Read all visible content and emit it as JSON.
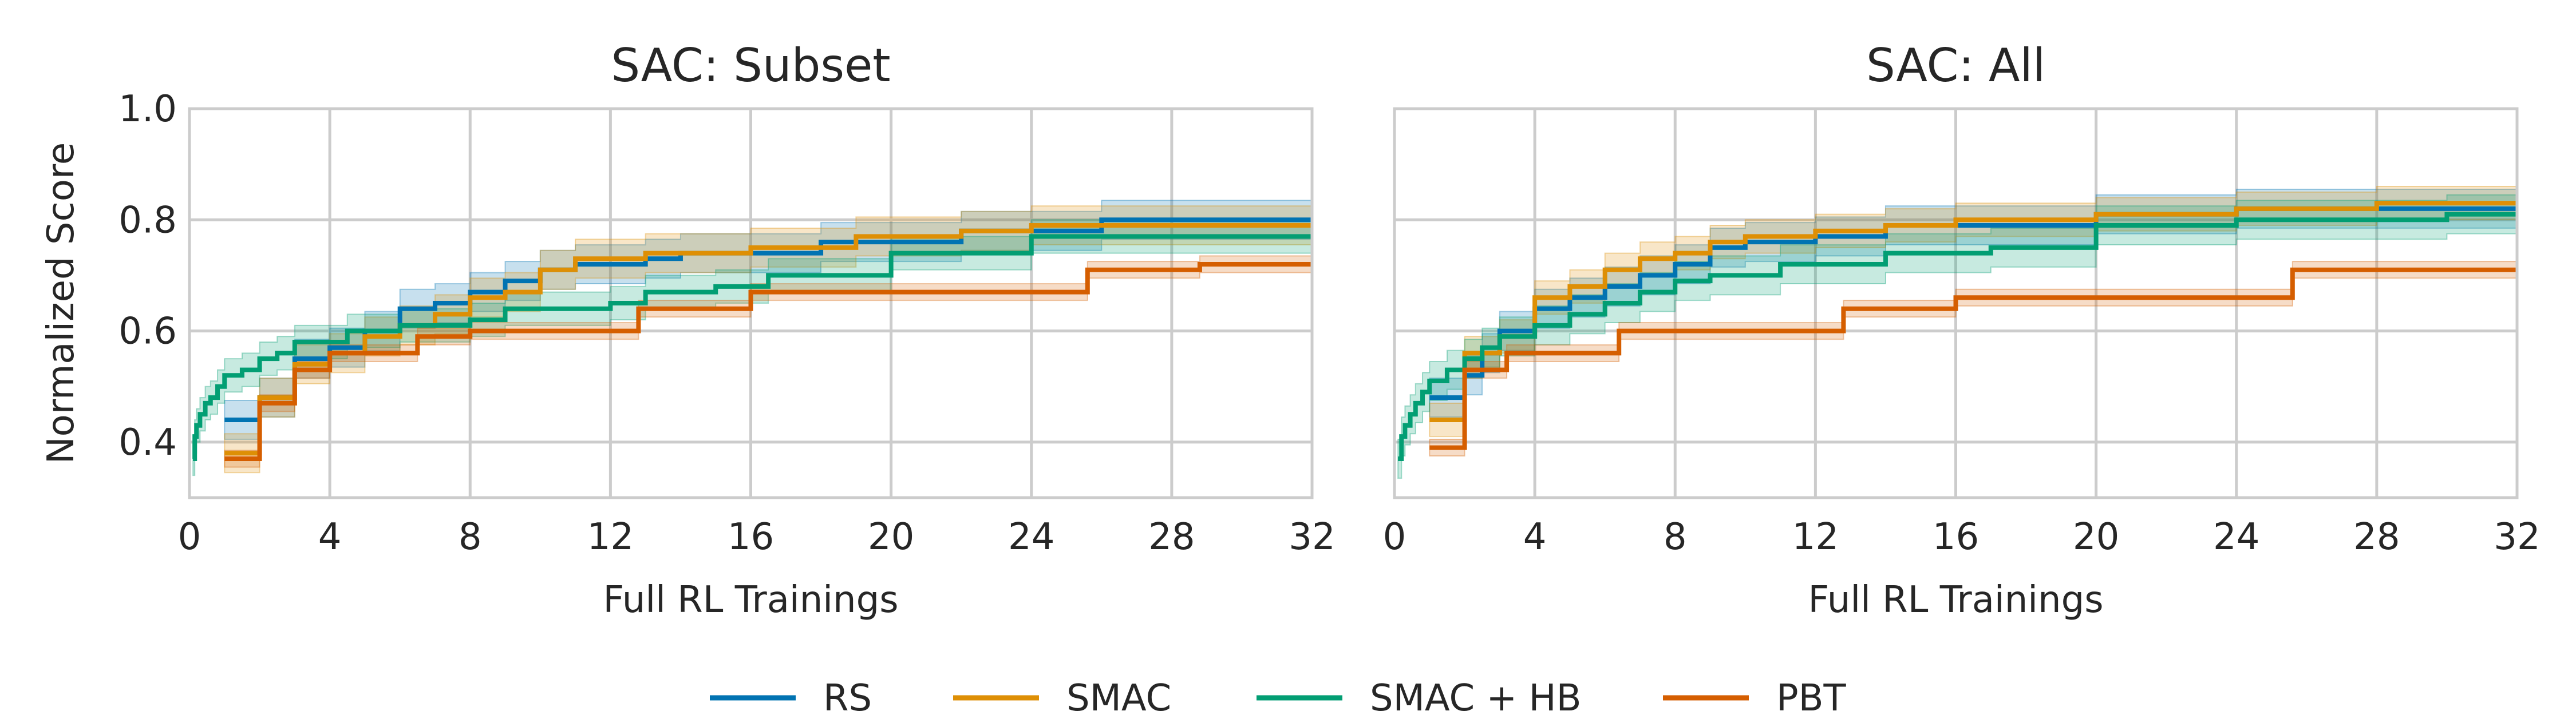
{
  "chart_data": [
    {
      "type": "line",
      "title": "SAC: Subset",
      "xlabel": "Full RL Trainings",
      "ylabel": "Normalized Score",
      "xlim": [
        0,
        32
      ],
      "ylim": [
        0.3,
        1.0
      ],
      "xticks": [
        "0",
        "4",
        "8",
        "12",
        "16",
        "20",
        "24",
        "28",
        "32"
      ],
      "yticks": [
        "0.4",
        "0.6",
        "0.8",
        "1.0"
      ],
      "grid": true,
      "series": [
        {
          "name": "RS",
          "color": "#0173b2",
          "band": 0.035,
          "points": [
            [
              1.0,
              0.44
            ],
            [
              2.0,
              0.44
            ],
            [
              2.0,
              0.48
            ],
            [
              3.0,
              0.48
            ],
            [
              3.0,
              0.55
            ],
            [
              4.0,
              0.55
            ],
            [
              4.0,
              0.57
            ],
            [
              5.0,
              0.57
            ],
            [
              5.0,
              0.6
            ],
            [
              6.0,
              0.6
            ],
            [
              6.0,
              0.64
            ],
            [
              7.0,
              0.64
            ],
            [
              7.0,
              0.65
            ],
            [
              8.0,
              0.65
            ],
            [
              8.0,
              0.67
            ],
            [
              9.0,
              0.67
            ],
            [
              9.0,
              0.69
            ],
            [
              10.0,
              0.69
            ],
            [
              10.0,
              0.71
            ],
            [
              11.0,
              0.71
            ],
            [
              11.0,
              0.72
            ],
            [
              13.0,
              0.72
            ],
            [
              13.0,
              0.73
            ],
            [
              14.0,
              0.73
            ],
            [
              14.0,
              0.74
            ],
            [
              18.0,
              0.74
            ],
            [
              18.0,
              0.76
            ],
            [
              22.0,
              0.76
            ],
            [
              22.0,
              0.78
            ],
            [
              26.0,
              0.78
            ],
            [
              26.0,
              0.8
            ],
            [
              32.0,
              0.8
            ]
          ]
        },
        {
          "name": "SMAC",
          "color": "#de8f05",
          "band": 0.035,
          "points": [
            [
              1.0,
              0.38
            ],
            [
              2.0,
              0.38
            ],
            [
              2.0,
              0.48
            ],
            [
              3.0,
              0.48
            ],
            [
              3.0,
              0.54
            ],
            [
              4.0,
              0.54
            ],
            [
              4.0,
              0.56
            ],
            [
              5.0,
              0.56
            ],
            [
              5.0,
              0.59
            ],
            [
              6.0,
              0.59
            ],
            [
              6.0,
              0.61
            ],
            [
              7.0,
              0.61
            ],
            [
              7.0,
              0.63
            ],
            [
              8.0,
              0.63
            ],
            [
              8.0,
              0.66
            ],
            [
              9.0,
              0.66
            ],
            [
              9.0,
              0.67
            ],
            [
              10.0,
              0.67
            ],
            [
              10.0,
              0.71
            ],
            [
              11.0,
              0.71
            ],
            [
              11.0,
              0.73
            ],
            [
              13.0,
              0.73
            ],
            [
              13.0,
              0.74
            ],
            [
              16.0,
              0.74
            ],
            [
              16.0,
              0.75
            ],
            [
              19.0,
              0.75
            ],
            [
              19.0,
              0.77
            ],
            [
              22.0,
              0.77
            ],
            [
              22.0,
              0.78
            ],
            [
              24.0,
              0.78
            ],
            [
              24.0,
              0.79
            ],
            [
              32.0,
              0.79
            ]
          ]
        },
        {
          "name": "SMAC + HB",
          "color": "#029e73",
          "band": 0.03,
          "points": [
            [
              0.1,
              0.37
            ],
            [
              0.15,
              0.37
            ],
            [
              0.15,
              0.41
            ],
            [
              0.2,
              0.41
            ],
            [
              0.2,
              0.43
            ],
            [
              0.3,
              0.43
            ],
            [
              0.3,
              0.45
            ],
            [
              0.45,
              0.45
            ],
            [
              0.45,
              0.47
            ],
            [
              0.6,
              0.47
            ],
            [
              0.6,
              0.48
            ],
            [
              0.8,
              0.48
            ],
            [
              0.8,
              0.5
            ],
            [
              1.0,
              0.5
            ],
            [
              1.0,
              0.52
            ],
            [
              1.5,
              0.52
            ],
            [
              1.5,
              0.53
            ],
            [
              2.0,
              0.53
            ],
            [
              2.0,
              0.55
            ],
            [
              2.5,
              0.55
            ],
            [
              2.5,
              0.56
            ],
            [
              3.0,
              0.56
            ],
            [
              3.0,
              0.58
            ],
            [
              4.5,
              0.58
            ],
            [
              4.5,
              0.6
            ],
            [
              6.0,
              0.6
            ],
            [
              6.0,
              0.61
            ],
            [
              8.0,
              0.61
            ],
            [
              8.0,
              0.62
            ],
            [
              9.0,
              0.62
            ],
            [
              9.0,
              0.64
            ],
            [
              12.0,
              0.64
            ],
            [
              12.0,
              0.65
            ],
            [
              13.0,
              0.65
            ],
            [
              13.0,
              0.67
            ],
            [
              15.0,
              0.67
            ],
            [
              15.0,
              0.68
            ],
            [
              16.5,
              0.68
            ],
            [
              16.5,
              0.7
            ],
            [
              20.0,
              0.7
            ],
            [
              20.0,
              0.74
            ],
            [
              24.0,
              0.74
            ],
            [
              24.0,
              0.77
            ],
            [
              32.0,
              0.77
            ]
          ]
        },
        {
          "name": "PBT",
          "color": "#d55e00",
          "band": 0.015,
          "points": [
            [
              1.0,
              0.37
            ],
            [
              2.0,
              0.37
            ],
            [
              2.0,
              0.47
            ],
            [
              3.0,
              0.47
            ],
            [
              3.0,
              0.53
            ],
            [
              4.0,
              0.53
            ],
            [
              4.0,
              0.56
            ],
            [
              6.5,
              0.56
            ],
            [
              6.5,
              0.59
            ],
            [
              8.0,
              0.59
            ],
            [
              8.0,
              0.6
            ],
            [
              12.8,
              0.6
            ],
            [
              12.8,
              0.64
            ],
            [
              16.0,
              0.64
            ],
            [
              16.0,
              0.67
            ],
            [
              25.6,
              0.67
            ],
            [
              25.6,
              0.71
            ],
            [
              28.8,
              0.71
            ],
            [
              28.8,
              0.72
            ],
            [
              32.0,
              0.72
            ]
          ]
        }
      ]
    },
    {
      "type": "line",
      "title": "SAC: All",
      "xlabel": "Full RL Trainings",
      "ylabel": "",
      "xlim": [
        0,
        32
      ],
      "ylim": [
        0.3,
        1.0
      ],
      "xticks": [
        "0",
        "4",
        "8",
        "12",
        "16",
        "20",
        "24",
        "28",
        "32"
      ],
      "yticks": [],
      "grid": true,
      "series": [
        {
          "name": "RS",
          "color": "#0173b2",
          "band": 0.035,
          "points": [
            [
              1.0,
              0.48
            ],
            [
              2.0,
              0.48
            ],
            [
              2.0,
              0.52
            ],
            [
              2.5,
              0.52
            ],
            [
              2.5,
              0.56
            ],
            [
              3.0,
              0.56
            ],
            [
              3.0,
              0.6
            ],
            [
              4.0,
              0.6
            ],
            [
              4.0,
              0.64
            ],
            [
              5.0,
              0.64
            ],
            [
              5.0,
              0.66
            ],
            [
              6.0,
              0.66
            ],
            [
              6.0,
              0.68
            ],
            [
              7.0,
              0.68
            ],
            [
              7.0,
              0.7
            ],
            [
              8.0,
              0.7
            ],
            [
              8.0,
              0.72
            ],
            [
              9.0,
              0.72
            ],
            [
              9.0,
              0.75
            ],
            [
              10.0,
              0.75
            ],
            [
              10.0,
              0.76
            ],
            [
              12.0,
              0.76
            ],
            [
              12.0,
              0.77
            ],
            [
              14.0,
              0.77
            ],
            [
              14.0,
              0.79
            ],
            [
              20.0,
              0.79
            ],
            [
              20.0,
              0.81
            ],
            [
              24.0,
              0.81
            ],
            [
              24.0,
              0.82
            ],
            [
              30.0,
              0.82
            ],
            [
              30.0,
              0.82
            ],
            [
              32.0,
              0.82
            ]
          ]
        },
        {
          "name": "SMAC",
          "color": "#de8f05",
          "band": 0.03,
          "points": [
            [
              1.0,
              0.44
            ],
            [
              2.0,
              0.44
            ],
            [
              2.0,
              0.56
            ],
            [
              3.0,
              0.56
            ],
            [
              3.0,
              0.59
            ],
            [
              4.0,
              0.59
            ],
            [
              4.0,
              0.66
            ],
            [
              5.0,
              0.66
            ],
            [
              5.0,
              0.68
            ],
            [
              6.0,
              0.68
            ],
            [
              6.0,
              0.71
            ],
            [
              7.0,
              0.71
            ],
            [
              7.0,
              0.73
            ],
            [
              8.0,
              0.73
            ],
            [
              8.0,
              0.74
            ],
            [
              9.0,
              0.74
            ],
            [
              9.0,
              0.76
            ],
            [
              10.0,
              0.76
            ],
            [
              10.0,
              0.77
            ],
            [
              12.0,
              0.77
            ],
            [
              12.0,
              0.78
            ],
            [
              14.0,
              0.78
            ],
            [
              14.0,
              0.79
            ],
            [
              16.0,
              0.79
            ],
            [
              16.0,
              0.8
            ],
            [
              20.0,
              0.8
            ],
            [
              20.0,
              0.81
            ],
            [
              24.0,
              0.81
            ],
            [
              24.0,
              0.82
            ],
            [
              28.0,
              0.82
            ],
            [
              28.0,
              0.83
            ],
            [
              32.0,
              0.83
            ]
          ]
        },
        {
          "name": "SMAC + HB",
          "color": "#029e73",
          "band": 0.035,
          "points": [
            [
              0.1,
              0.37
            ],
            [
              0.2,
              0.37
            ],
            [
              0.2,
              0.41
            ],
            [
              0.3,
              0.41
            ],
            [
              0.3,
              0.43
            ],
            [
              0.45,
              0.43
            ],
            [
              0.45,
              0.45
            ],
            [
              0.6,
              0.45
            ],
            [
              0.6,
              0.47
            ],
            [
              0.8,
              0.47
            ],
            [
              0.8,
              0.49
            ],
            [
              1.0,
              0.49
            ],
            [
              1.0,
              0.51
            ],
            [
              1.5,
              0.51
            ],
            [
              1.5,
              0.53
            ],
            [
              2.0,
              0.53
            ],
            [
              2.0,
              0.55
            ],
            [
              2.5,
              0.55
            ],
            [
              2.5,
              0.57
            ],
            [
              3.0,
              0.57
            ],
            [
              3.0,
              0.59
            ],
            [
              4.0,
              0.59
            ],
            [
              4.0,
              0.61
            ],
            [
              5.0,
              0.61
            ],
            [
              5.0,
              0.63
            ],
            [
              6.0,
              0.63
            ],
            [
              6.0,
              0.65
            ],
            [
              7.0,
              0.65
            ],
            [
              7.0,
              0.67
            ],
            [
              8.0,
              0.67
            ],
            [
              8.0,
              0.69
            ],
            [
              9.0,
              0.69
            ],
            [
              9.0,
              0.7
            ],
            [
              11.0,
              0.7
            ],
            [
              11.0,
              0.72
            ],
            [
              14.0,
              0.72
            ],
            [
              14.0,
              0.74
            ],
            [
              17.0,
              0.74
            ],
            [
              17.0,
              0.75
            ],
            [
              20.0,
              0.75
            ],
            [
              20.0,
              0.79
            ],
            [
              24.0,
              0.79
            ],
            [
              24.0,
              0.8
            ],
            [
              30.0,
              0.8
            ],
            [
              30.0,
              0.81
            ],
            [
              32.0,
              0.81
            ]
          ]
        },
        {
          "name": "PBT",
          "color": "#d55e00",
          "band": 0.015,
          "points": [
            [
              1.0,
              0.39
            ],
            [
              2.0,
              0.39
            ],
            [
              2.0,
              0.53
            ],
            [
              3.2,
              0.53
            ],
            [
              3.2,
              0.56
            ],
            [
              6.4,
              0.56
            ],
            [
              6.4,
              0.6
            ],
            [
              12.8,
              0.6
            ],
            [
              12.8,
              0.64
            ],
            [
              16.0,
              0.64
            ],
            [
              16.0,
              0.66
            ],
            [
              25.6,
              0.66
            ],
            [
              25.6,
              0.71
            ],
            [
              32.0,
              0.71
            ]
          ]
        }
      ]
    }
  ],
  "legend": {
    "placement": "bottom-center",
    "items": [
      {
        "label": "RS",
        "color": "#0173b2"
      },
      {
        "label": "SMAC",
        "color": "#de8f05"
      },
      {
        "label": "SMAC + HB",
        "color": "#029e73"
      },
      {
        "label": "PBT",
        "color": "#d55e00"
      }
    ]
  }
}
